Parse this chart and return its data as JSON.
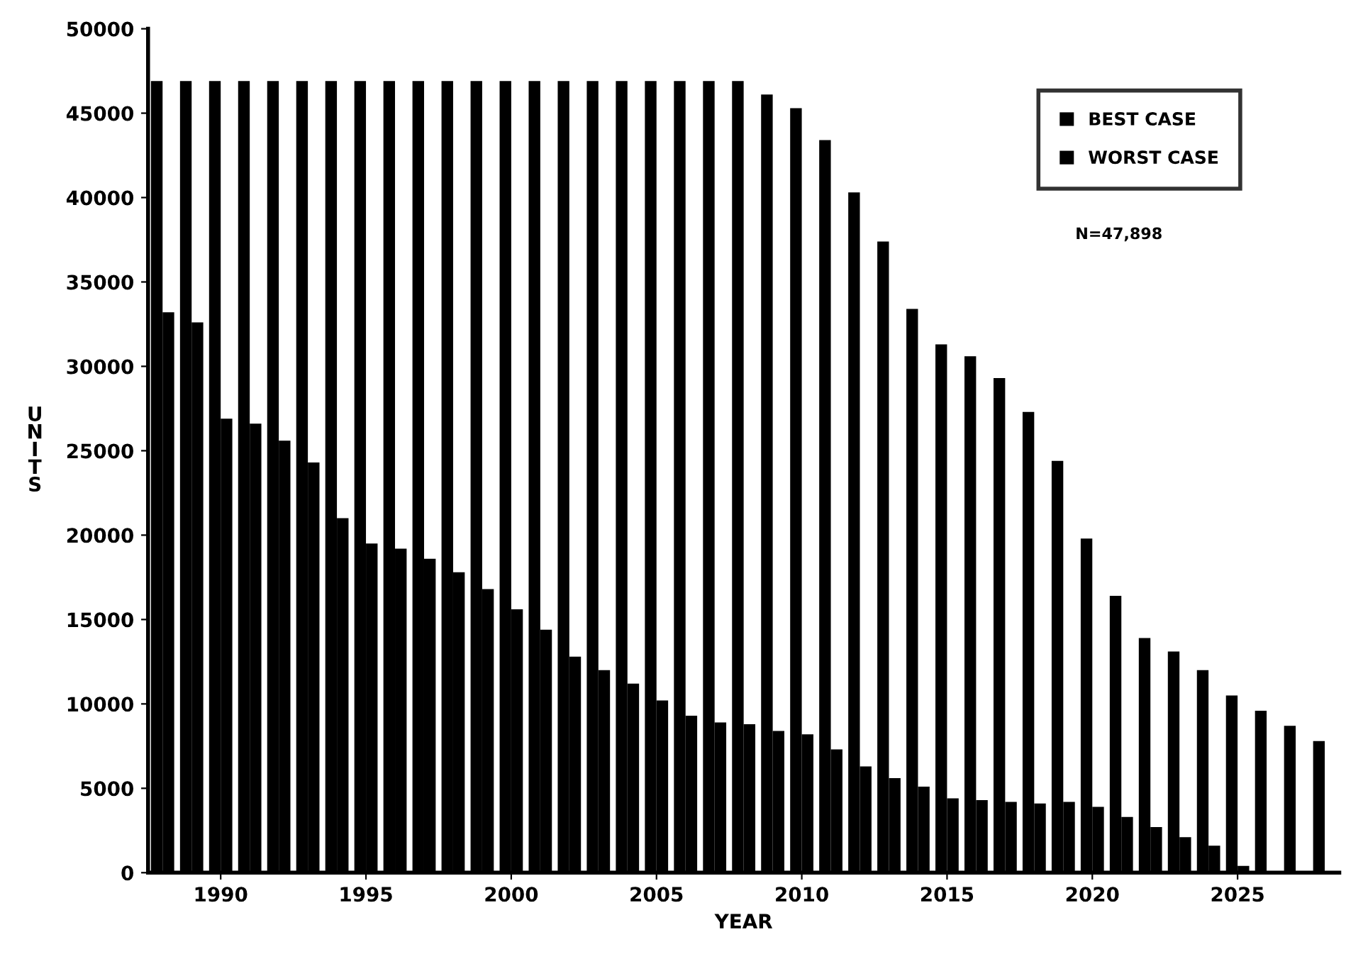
{
  "chart_data": {
    "type": "bar",
    "xlabel": "YEAR",
    "ylabel": "UNITS",
    "x": [
      1988,
      1989,
      1990,
      1991,
      1992,
      1993,
      1994,
      1995,
      1996,
      1997,
      1998,
      1999,
      2000,
      2001,
      2002,
      2003,
      2004,
      2005,
      2006,
      2007,
      2008,
      2009,
      2010,
      2011,
      2012,
      2013,
      2014,
      2015,
      2016,
      2017,
      2018,
      2019,
      2020,
      2021,
      2022,
      2023,
      2024,
      2025,
      2026,
      2027,
      2028
    ],
    "series": [
      {
        "name": "BEST CASE",
        "color": "#000000",
        "values": [
          46900,
          46900,
          46900,
          46900,
          46900,
          46900,
          46900,
          46900,
          46900,
          46900,
          46900,
          46900,
          46900,
          46900,
          46900,
          46900,
          46900,
          46900,
          46900,
          46900,
          46900,
          46100,
          45300,
          43400,
          40300,
          37400,
          33400,
          31300,
          30600,
          29300,
          27300,
          24400,
          19800,
          16400,
          13900,
          13100,
          12000,
          10500,
          9600,
          8700,
          7800
        ]
      },
      {
        "name": "WORST CASE",
        "color": "#000000",
        "values": [
          33200,
          32600,
          26900,
          26600,
          25600,
          24300,
          21000,
          19500,
          19200,
          18600,
          17800,
          16800,
          15600,
          14400,
          12800,
          12000,
          11200,
          10200,
          9300,
          8900,
          8800,
          8400,
          8200,
          7300,
          6300,
          5600,
          5100,
          4400,
          4300,
          4200,
          4100,
          4200,
          3900,
          3300,
          2700,
          2100,
          1600,
          400,
          null,
          null,
          null
        ]
      }
    ],
    "xlim": [
      1987.5,
      2028.5
    ],
    "xticks": [
      1990,
      1995,
      2000,
      2005,
      2010,
      2015,
      2020,
      2025
    ],
    "ylim": [
      0,
      50000
    ],
    "yticks": [
      0,
      5000,
      10000,
      15000,
      20000,
      25000,
      30000,
      35000,
      40000,
      45000,
      50000
    ],
    "legend": "top right",
    "grid": false,
    "annotations": [
      "N=47,898"
    ]
  }
}
